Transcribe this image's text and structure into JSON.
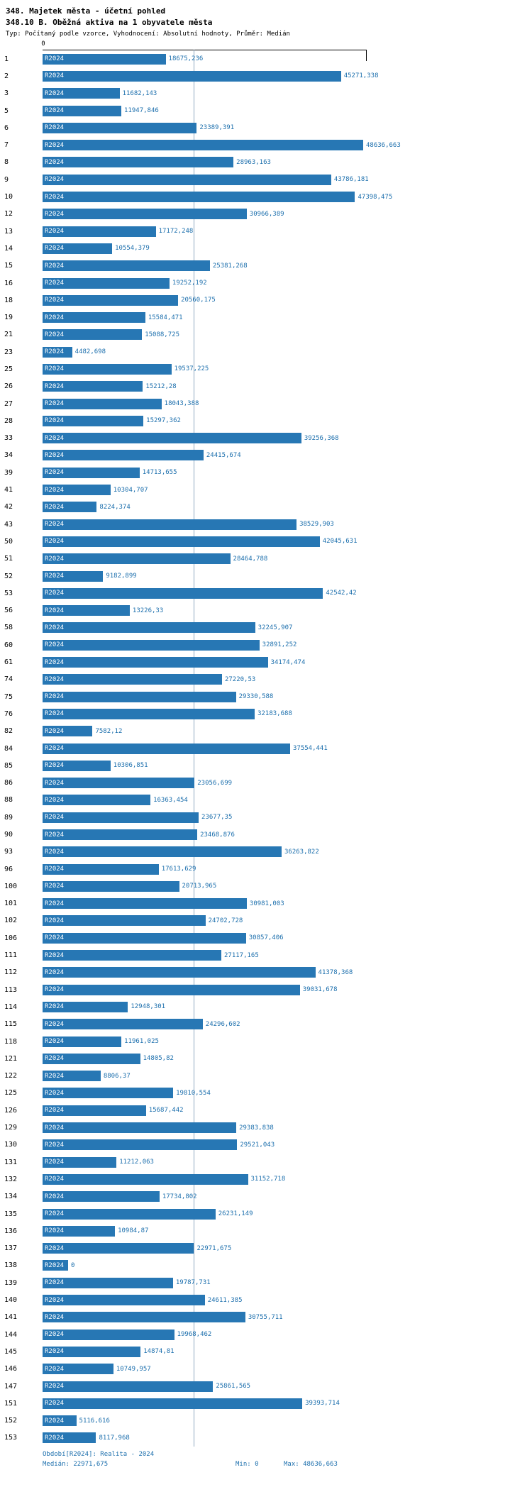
{
  "header": {
    "title": "348. Majetek města - účetní pohled",
    "subtitle": "348.10 B. Oběžná aktiva na 1 obyvatele města",
    "meta": "Typ: Počítaný podle vzorce, Vyhodnocení: Absolutní hodnoty, Průměr: Medián"
  },
  "chart_data": {
    "type": "bar",
    "orientation": "horizontal",
    "title": "348.10 B. Oběžná aktiva na 1 obyvatele města",
    "axis_top_tick": "0",
    "xlim": [
      0,
      48636.663
    ],
    "grid": false,
    "legend": "none",
    "median": 22971.675,
    "min": 0,
    "max": 48636.663,
    "bar_color": "#2777b4",
    "value_label_color": "#1c6fad",
    "median_line_color": "#8fa8c0",
    "footer_text_color": "#1c6fad",
    "categories": [
      "1",
      "2",
      "3",
      "5",
      "6",
      "7",
      "8",
      "9",
      "10",
      "12",
      "13",
      "14",
      "15",
      "16",
      "18",
      "19",
      "21",
      "23",
      "25",
      "26",
      "27",
      "28",
      "33",
      "34",
      "39",
      "41",
      "42",
      "43",
      "50",
      "51",
      "52",
      "53",
      "56",
      "58",
      "60",
      "61",
      "74",
      "75",
      "76",
      "82",
      "84",
      "85",
      "86",
      "88",
      "89",
      "90",
      "93",
      "96",
      "100",
      "101",
      "102",
      "106",
      "111",
      "112",
      "113",
      "114",
      "115",
      "118",
      "121",
      "122",
      "125",
      "126",
      "129",
      "130",
      "131",
      "132",
      "134",
      "135",
      "136",
      "137",
      "138",
      "139",
      "140",
      "141",
      "144",
      "145",
      "146",
      "147",
      "151",
      "152",
      "153"
    ],
    "series": [
      {
        "name": "R2024",
        "values": [
          18675.236,
          45271.338,
          11682.143,
          11947.846,
          23389.391,
          48636.663,
          28963.163,
          43786.181,
          47398.475,
          30966.389,
          17172.248,
          10554.379,
          25381.268,
          19252.192,
          20560.175,
          15584.471,
          15088.725,
          4482.698,
          19537.225,
          15212.28,
          18043.388,
          15297.362,
          39256.368,
          24415.674,
          14713.655,
          10304.707,
          8224.374,
          38529.903,
          42045.631,
          28464.788,
          9182.899,
          42542.42,
          13226.33,
          32245.907,
          32891.252,
          34174.474,
          27220.53,
          29330.588,
          32183.688,
          7582.12,
          37554.441,
          10306.851,
          23056.699,
          16363.454,
          23677.35,
          23468.876,
          36263.822,
          17613.629,
          20713.965,
          30981.003,
          24702.728,
          30857.406,
          27117.165,
          41378.368,
          39031.678,
          12948.301,
          24296.602,
          11961.025,
          14805.82,
          8806.37,
          19810.554,
          15687.442,
          29383.838,
          29521.043,
          11212.063,
          31152.718,
          17734.802,
          26231.149,
          10984.87,
          22971.675,
          0,
          19787.731,
          24611.385,
          30755.711,
          19968.462,
          14874.81,
          10749.957,
          25861.565,
          39393.714,
          5116.616,
          8117.968
        ]
      }
    ]
  },
  "footer": {
    "period": "Období[R2024]: Realita - 2024",
    "median": "Medián: 22971,675",
    "min": "Min: 0",
    "max": "Max: 48636,663"
  }
}
